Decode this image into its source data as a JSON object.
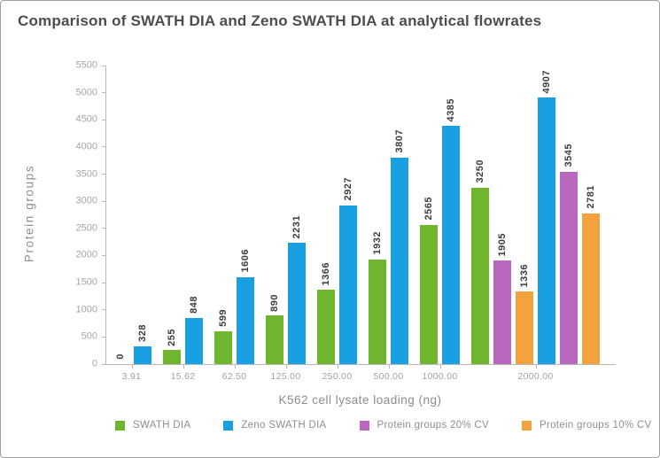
{
  "title": "Comparison of SWATH DIA and Zeno SWATH DIA at analytical flowrates",
  "chart_data": {
    "type": "bar",
    "title": "Comparison of SWATH DIA and Zeno SWATH DIA at analytical flowrates",
    "xlabel": "K562 cell lysate loading (ng)",
    "ylabel": "Protein groups",
    "ylim": [
      0,
      5500
    ],
    "ytick_step": 500,
    "yticks": [
      0,
      500,
      1000,
      1500,
      2000,
      2500,
      3000,
      3500,
      4000,
      4500,
      5000,
      5500
    ],
    "grid": false,
    "legend_position": "bottom",
    "value_labels": "rotated-90-above-bars",
    "categories": [
      "3.91",
      "15.62",
      "62.50",
      "125.00",
      "250.00",
      "500.00",
      "1000.00",
      "2000.00"
    ],
    "series_colors": {
      "SWATH DIA": "#6FB52D",
      "Zeno SWATH DIA": "#19A0E2",
      "Protein groups 20% CV": "#B868BE",
      "Protein groups 10% CV": "#F4A23D"
    },
    "legend": [
      {
        "label": "SWATH DIA",
        "color": "#6FB52D"
      },
      {
        "label": "Zeno SWATH DIA",
        "color": "#19A0E2"
      },
      {
        "label": "Protein groups 20% CV",
        "color": "#B868BE"
      },
      {
        "label": "Protein groups 10% CV",
        "color": "#F4A23D"
      }
    ],
    "groups": [
      {
        "category": "3.91",
        "bars": [
          {
            "series": "SWATH DIA",
            "value": 0
          },
          {
            "series": "Zeno SWATH DIA",
            "value": 328
          }
        ]
      },
      {
        "category": "15.62",
        "bars": [
          {
            "series": "SWATH DIA",
            "value": 255
          },
          {
            "series": "Zeno SWATH DIA",
            "value": 848
          }
        ]
      },
      {
        "category": "62.50",
        "bars": [
          {
            "series": "SWATH DIA",
            "value": 599
          },
          {
            "series": "Zeno SWATH DIA",
            "value": 1606
          }
        ]
      },
      {
        "category": "125.00",
        "bars": [
          {
            "series": "SWATH DIA",
            "value": 890
          },
          {
            "series": "Zeno SWATH DIA",
            "value": 2231
          }
        ]
      },
      {
        "category": "250.00",
        "bars": [
          {
            "series": "SWATH DIA",
            "value": 1366
          },
          {
            "series": "Zeno SWATH DIA",
            "value": 2927
          }
        ]
      },
      {
        "category": "500.00",
        "bars": [
          {
            "series": "SWATH DIA",
            "value": 1932
          },
          {
            "series": "Zeno SWATH DIA",
            "value": 3807
          }
        ]
      },
      {
        "category": "1000.00",
        "bars": [
          {
            "series": "SWATH DIA",
            "value": 2565
          },
          {
            "series": "Zeno SWATH DIA",
            "value": 4385
          }
        ]
      },
      {
        "category": "2000.00",
        "bars": [
          {
            "series": "SWATH DIA",
            "value": 3250
          },
          {
            "series": "Protein groups 20% CV",
            "value": 1905
          },
          {
            "series": "Protein groups 10% CV",
            "value": 1336
          },
          {
            "series": "Zeno SWATH DIA",
            "value": 4907
          },
          {
            "series": "Protein groups 20% CV",
            "value": 3545
          },
          {
            "series": "Protein groups 10% CV",
            "value": 2781
          }
        ]
      }
    ]
  },
  "colors": {
    "title_text": "#4d4d4d",
    "axis_line": "#b8b8b8",
    "tick_label": "#a6a6a6",
    "value_label": "#3c3c3c",
    "frame_border": "#9f9f9f",
    "background": "#ffffff"
  }
}
